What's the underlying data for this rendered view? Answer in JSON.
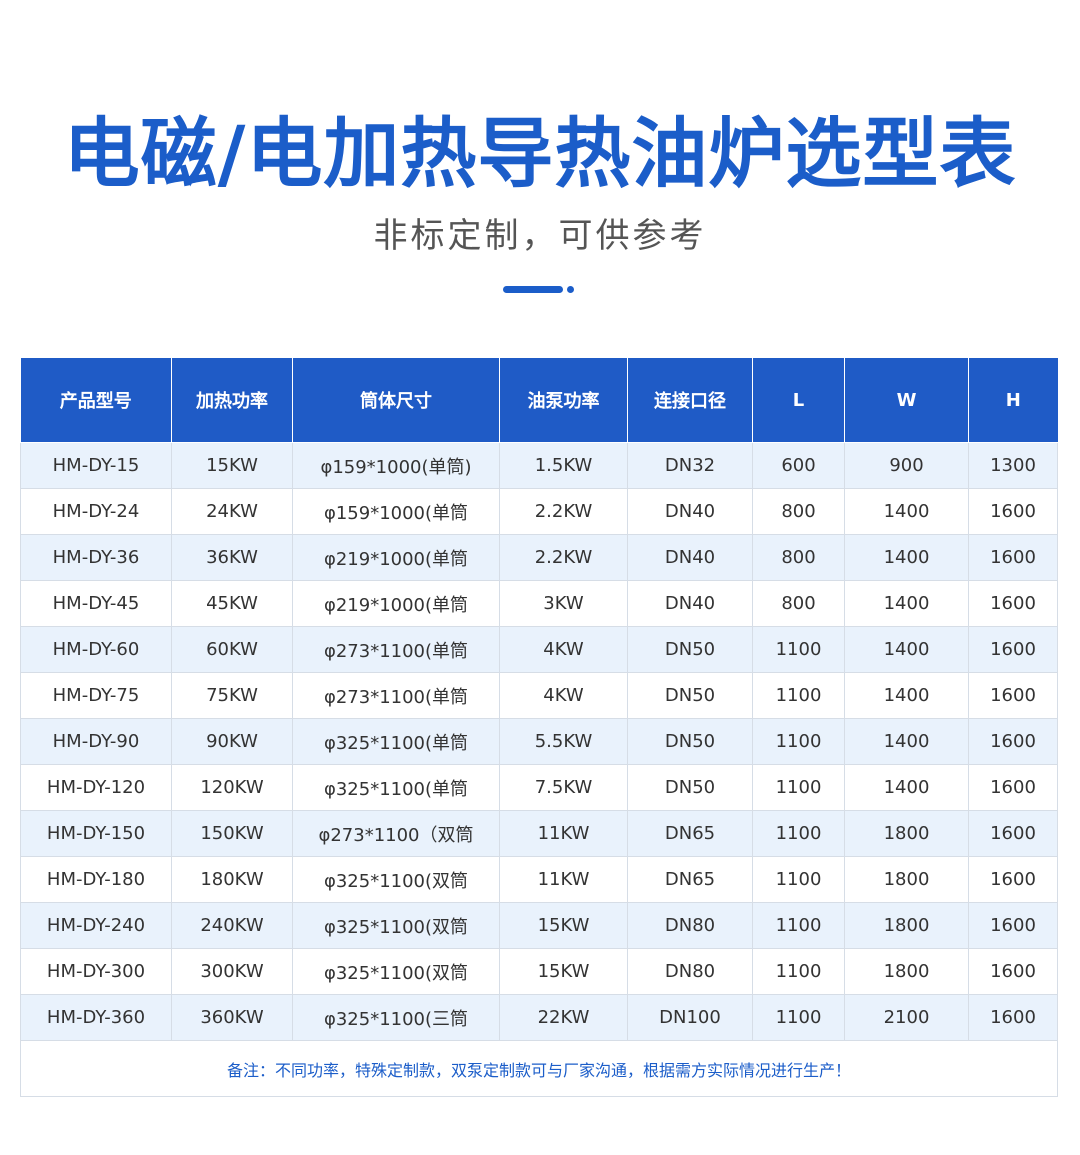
{
  "title": "电磁/电加热导热油炉选型表",
  "subtitle": "非标定制，可供参考",
  "table": {
    "headers": [
      "产品型号",
      "加热功率",
      "筒体尺寸",
      "油泵功率",
      "连接口径",
      "L",
      "W",
      "H"
    ],
    "rows": [
      [
        "HM-DY-15",
        "15KW",
        "φ159*1000(单筒)",
        "1.5KW",
        "DN32",
        "600",
        "900",
        "1300"
      ],
      [
        "HM-DY-24",
        "24KW",
        "φ159*1000(单筒",
        "2.2KW",
        "DN40",
        "800",
        "1400",
        "1600"
      ],
      [
        "HM-DY-36",
        "36KW",
        "φ219*1000(单筒",
        "2.2KW",
        "DN40",
        "800",
        "1400",
        "1600"
      ],
      [
        "HM-DY-45",
        "45KW",
        "φ219*1000(单筒",
        "3KW",
        "DN40",
        "800",
        "1400",
        "1600"
      ],
      [
        "HM-DY-60",
        "60KW",
        "φ273*1100(单筒",
        "4KW",
        "DN50",
        "1100",
        "1400",
        "1600"
      ],
      [
        "HM-DY-75",
        "75KW",
        "φ273*1100(单筒",
        "4KW",
        "DN50",
        "1100",
        "1400",
        "1600"
      ],
      [
        "HM-DY-90",
        "90KW",
        "φ325*1100(单筒",
        "5.5KW",
        "DN50",
        "1100",
        "1400",
        "1600"
      ],
      [
        "HM-DY-120",
        "120KW",
        "φ325*1100(单筒",
        "7.5KW",
        "DN50",
        "1100",
        "1400",
        "1600"
      ],
      [
        "HM-DY-150",
        "150KW",
        "φ273*1100（双筒",
        "11KW",
        "DN65",
        "1100",
        "1800",
        "1600"
      ],
      [
        "HM-DY-180",
        "180KW",
        "φ325*1100(双筒",
        "11KW",
        "DN65",
        "1100",
        "1800",
        "1600"
      ],
      [
        "HM-DY-240",
        "240KW",
        "φ325*1100(双筒",
        "15KW",
        "DN80",
        "1100",
        "1800",
        "1600"
      ],
      [
        "HM-DY-300",
        "300KW",
        "φ325*1100(双筒",
        "15KW",
        "DN80",
        "1100",
        "1800",
        "1600"
      ],
      [
        "HM-DY-360",
        "360KW",
        "φ325*1100(三筒",
        "22KW",
        "DN100",
        "1100",
        "2100",
        "1600"
      ]
    ],
    "note": "备注：不同功率，特殊定制款，双泵定制款可与厂家沟通，根据需方实际情况进行生产！"
  },
  "colors": {
    "accent": "#1b5dc9",
    "header_bg": "#1f5bc6",
    "row_alt": "#e9f2fc"
  }
}
